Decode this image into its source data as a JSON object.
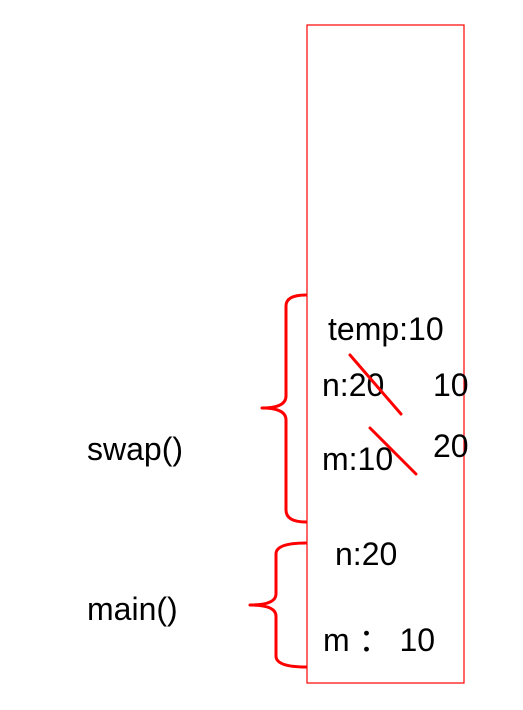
{
  "stack": {
    "frames": [
      {
        "name": "swap()",
        "variables": [
          {
            "label": "temp:10"
          },
          {
            "label": "n:20",
            "new_value": "10",
            "crossed_out": true
          },
          {
            "label": "m:10",
            "new_value": "20",
            "crossed_out": true
          }
        ]
      },
      {
        "name": "main()",
        "variables": [
          {
            "label": "n:20"
          },
          {
            "label": "m ： 10"
          }
        ]
      }
    ]
  },
  "colors": {
    "accent": "#ff0000",
    "text": "#000000",
    "background": "#ffffff"
  }
}
